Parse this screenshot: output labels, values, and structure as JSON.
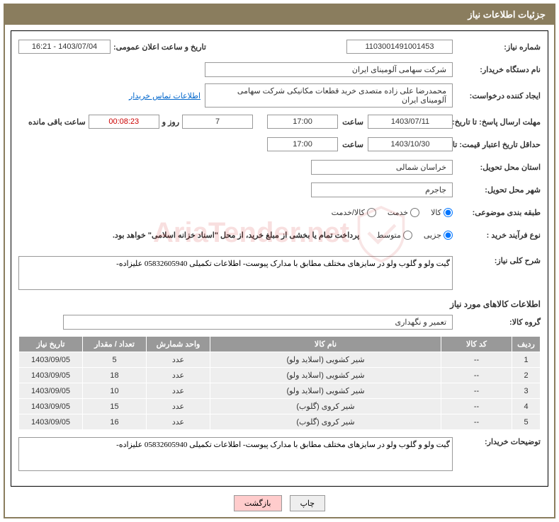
{
  "header": {
    "title": "جزئیات اطلاعات نیاز"
  },
  "fields": {
    "need_number_label": "شماره نیاز:",
    "need_number": "1103001491001453",
    "announce_label": "تاریخ و ساعت اعلان عمومی:",
    "announce_date": "1403/07/04 - 16:21",
    "buyer_org_label": "نام دستگاه خریدار:",
    "buyer_org": "شرکت سهامی آلومینای ایران",
    "requester_label": "ایجاد کننده درخواست:",
    "requester": "محمدرضا علی زاده متصدی خرید قطعات مکانیکی شرکت سهامی آلومینای ایران",
    "contact_link": "اطلاعات تماس خریدار",
    "reply_deadline_label": "مهلت ارسال پاسخ: تا تاریخ:",
    "reply_date": "1403/07/11",
    "time_label": "ساعت",
    "reply_time": "17:00",
    "days": "7",
    "days_suffix": "روز و",
    "countdown": "00:08:23",
    "remaining": "ساعت باقی مانده",
    "validity_label": "حداقل تاریخ اعتبار قیمت: تا تاریخ:",
    "validity_date": "1403/10/30",
    "validity_time": "17:00",
    "province_label": "استان محل تحویل:",
    "province": "خراسان شمالی",
    "city_label": "شهر محل تحویل:",
    "city": "جاجرم",
    "category_label": "طبقه بندی موضوعی:",
    "cat_goods": "کالا",
    "cat_service": "خدمت",
    "cat_goods_service": "کالا/خدمت",
    "process_label": "نوع فرآیند خرید :",
    "proc_partial": "جزیی",
    "proc_medium": "متوسط",
    "payment_note": "پرداخت تمام یا بخشی از مبلغ خرید، از محل \"اسناد خزانه اسلامی\" خواهد بود.",
    "desc_label": "شرح کلی نیاز:",
    "description": "گیت ولو و گلوب ولو در سایزهای مختلف مطابق با مدارک پیوست- اطلاعات تکمیلی 05832605940 علیزاده-",
    "goods_section": "اطلاعات کالاهای مورد نیاز",
    "goods_group_label": "گروه کالا:",
    "goods_group": "تعمیر و نگهداری",
    "buyer_notes_label": "توضیحات خریدار:",
    "buyer_notes": "گیت ولو و گلوب ولو در سایزهای مختلف مطابق با مدارک پیوست- اطلاعات تکمیلی 05832605940 علیزاده-"
  },
  "table": {
    "headers": {
      "row": "ردیف",
      "code": "کد کالا",
      "name": "نام کالا",
      "unit": "واحد شمارش",
      "qty": "تعداد / مقدار",
      "need_date": "تاریخ نیاز"
    },
    "rows": [
      {
        "row": "1",
        "code": "--",
        "name": "شیر کشویی (اسلاید ولو)",
        "unit": "عدد",
        "qty": "5",
        "date": "1403/09/05"
      },
      {
        "row": "2",
        "code": "--",
        "name": "شیر کشویی (اسلاید ولو)",
        "unit": "عدد",
        "qty": "18",
        "date": "1403/09/05"
      },
      {
        "row": "3",
        "code": "--",
        "name": "شیر کشویی (اسلاید ولو)",
        "unit": "عدد",
        "qty": "10",
        "date": "1403/09/05"
      },
      {
        "row": "4",
        "code": "--",
        "name": "شیر کروی (گلوب)",
        "unit": "عدد",
        "qty": "15",
        "date": "1403/09/05"
      },
      {
        "row": "5",
        "code": "--",
        "name": "شیر کروی (گلوب)",
        "unit": "عدد",
        "qty": "16",
        "date": "1403/09/05"
      }
    ]
  },
  "buttons": {
    "print": "چاپ",
    "back": "بازگشت"
  },
  "watermark": "AriaTender.net"
}
